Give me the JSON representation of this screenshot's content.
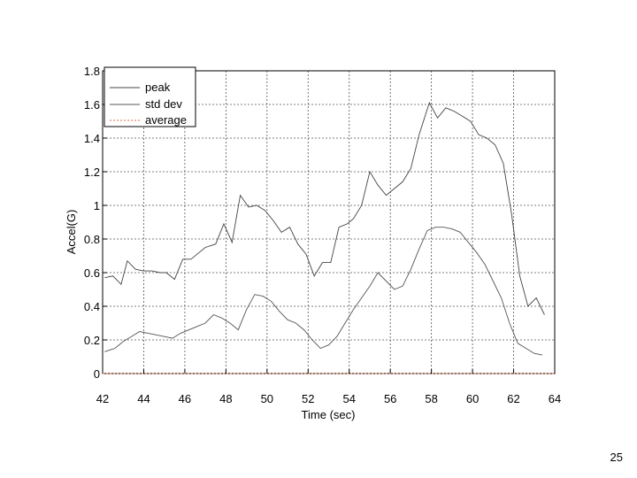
{
  "slide": {
    "page_number": "25"
  },
  "chart_data": {
    "type": "line",
    "title": "",
    "xlabel": "Time (sec)",
    "ylabel": "Accel(G)",
    "xlim": [
      42,
      64
    ],
    "ylim": [
      0,
      1.8
    ],
    "xticks": [
      "42",
      "44",
      "46",
      "48",
      "50",
      "52",
      "54",
      "56",
      "58",
      "60",
      "62",
      "64"
    ],
    "yticks": [
      "0",
      "0.2",
      "0.4",
      "0.6",
      "0.8",
      "1",
      "1.2",
      "1.4",
      "1.6",
      "1.8"
    ],
    "grid": true,
    "legend_position": "top-left",
    "series": [
      {
        "name": "peak",
        "color": "#444444",
        "x": [
          42.1,
          42.5,
          42.9,
          43.2,
          43.6,
          44.0,
          44.4,
          44.8,
          45.1,
          45.5,
          45.9,
          46.3,
          46.7,
          47.0,
          47.5,
          47.9,
          48.3,
          48.7,
          49.1,
          49.5,
          49.9,
          50.3,
          50.7,
          51.1,
          51.5,
          51.9,
          52.3,
          52.7,
          53.1,
          53.5,
          53.9,
          54.2,
          54.6,
          55.0,
          55.4,
          55.8,
          56.2,
          56.6,
          57.0,
          57.4,
          57.9,
          58.3,
          58.7,
          59.1,
          59.5,
          59.9,
          60.3,
          60.7,
          61.1,
          61.5,
          61.9,
          62.3,
          62.7,
          63.1,
          63.5
        ],
        "y": [
          0.57,
          0.58,
          0.53,
          0.67,
          0.62,
          0.61,
          0.61,
          0.6,
          0.6,
          0.56,
          0.68,
          0.68,
          0.72,
          0.75,
          0.77,
          0.89,
          0.78,
          1.06,
          0.99,
          1.0,
          0.97,
          0.91,
          0.84,
          0.87,
          0.77,
          0.71,
          0.58,
          0.66,
          0.66,
          0.87,
          0.89,
          0.92,
          1.0,
          1.2,
          1.12,
          1.06,
          1.1,
          1.14,
          1.22,
          1.42,
          1.61,
          1.52,
          1.58,
          1.56,
          1.53,
          1.5,
          1.42,
          1.4,
          1.36,
          1.25,
          0.95,
          0.58,
          0.4,
          0.45,
          0.35
        ]
      },
      {
        "name": "std dev",
        "color": "#555555",
        "x": [
          42.1,
          42.6,
          43.0,
          43.4,
          43.8,
          44.2,
          44.6,
          45.0,
          45.4,
          45.8,
          46.2,
          46.6,
          47.0,
          47.4,
          47.8,
          48.2,
          48.6,
          49.0,
          49.4,
          49.8,
          50.2,
          50.6,
          51.0,
          51.4,
          51.8,
          52.2,
          52.6,
          53.0,
          53.4,
          53.8,
          54.2,
          54.6,
          55.0,
          55.4,
          55.8,
          56.2,
          56.6,
          57.0,
          57.4,
          57.8,
          58.2,
          58.6,
          59.0,
          59.4,
          59.8,
          60.2,
          60.6,
          61.0,
          61.4,
          61.8,
          62.2,
          62.6,
          63.0,
          63.4
        ],
        "y": [
          0.13,
          0.15,
          0.19,
          0.22,
          0.25,
          0.24,
          0.23,
          0.22,
          0.21,
          0.24,
          0.26,
          0.28,
          0.3,
          0.35,
          0.33,
          0.3,
          0.26,
          0.38,
          0.47,
          0.46,
          0.43,
          0.37,
          0.32,
          0.3,
          0.26,
          0.2,
          0.15,
          0.17,
          0.22,
          0.3,
          0.38,
          0.45,
          0.52,
          0.6,
          0.55,
          0.5,
          0.52,
          0.62,
          0.74,
          0.85,
          0.87,
          0.87,
          0.86,
          0.84,
          0.78,
          0.72,
          0.65,
          0.55,
          0.45,
          0.3,
          0.18,
          0.15,
          0.12,
          0.11
        ]
      },
      {
        "name": "average",
        "color": "#e06a4a",
        "x": [
          42,
          64
        ],
        "y": [
          0.0,
          0.0
        ]
      }
    ]
  }
}
